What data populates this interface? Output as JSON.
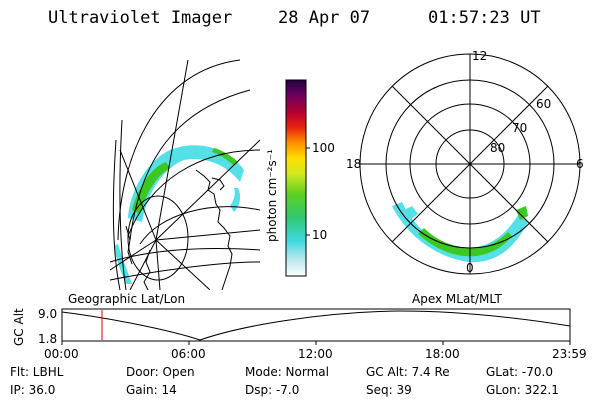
{
  "header": {
    "title": "Ultraviolet Imager",
    "date": "28 Apr 07",
    "time": "01:57:23 UT"
  },
  "colorbar": {
    "label": "photon cm⁻²s⁻¹",
    "ticks": [
      "100",
      "10"
    ]
  },
  "polar": {
    "mlt_labels": [
      "12",
      "18",
      "6",
      "0"
    ],
    "lat_labels": [
      "60",
      "70",
      "80"
    ]
  },
  "timeline": {
    "left_title": "Geographic Lat/Lon",
    "right_title": "Apex MLat/MLT",
    "ylabel": "GC Alt",
    "y_ticks": [
      "9.0",
      "1.8"
    ],
    "x_ticks": [
      "00:00",
      "06:00",
      "12:00",
      "18:00",
      "23:59"
    ]
  },
  "info": {
    "flt": "Flt: LBHL",
    "ip": "IP: 36.0",
    "door": "Door: Open",
    "gain": "Gain: 14",
    "mode": "Mode: Normal",
    "dsp": "Dsp:   -7.0",
    "gc_alt": "GC Alt: 7.4 Re",
    "seq": "Seq: 39",
    "glat": "GLat: -70.0",
    "glon": "GLon: 322.1"
  },
  "colors": {
    "aurora_cyan": "#55e0e8",
    "aurora_green": "#3cc820",
    "marker": "#e00000"
  }
}
